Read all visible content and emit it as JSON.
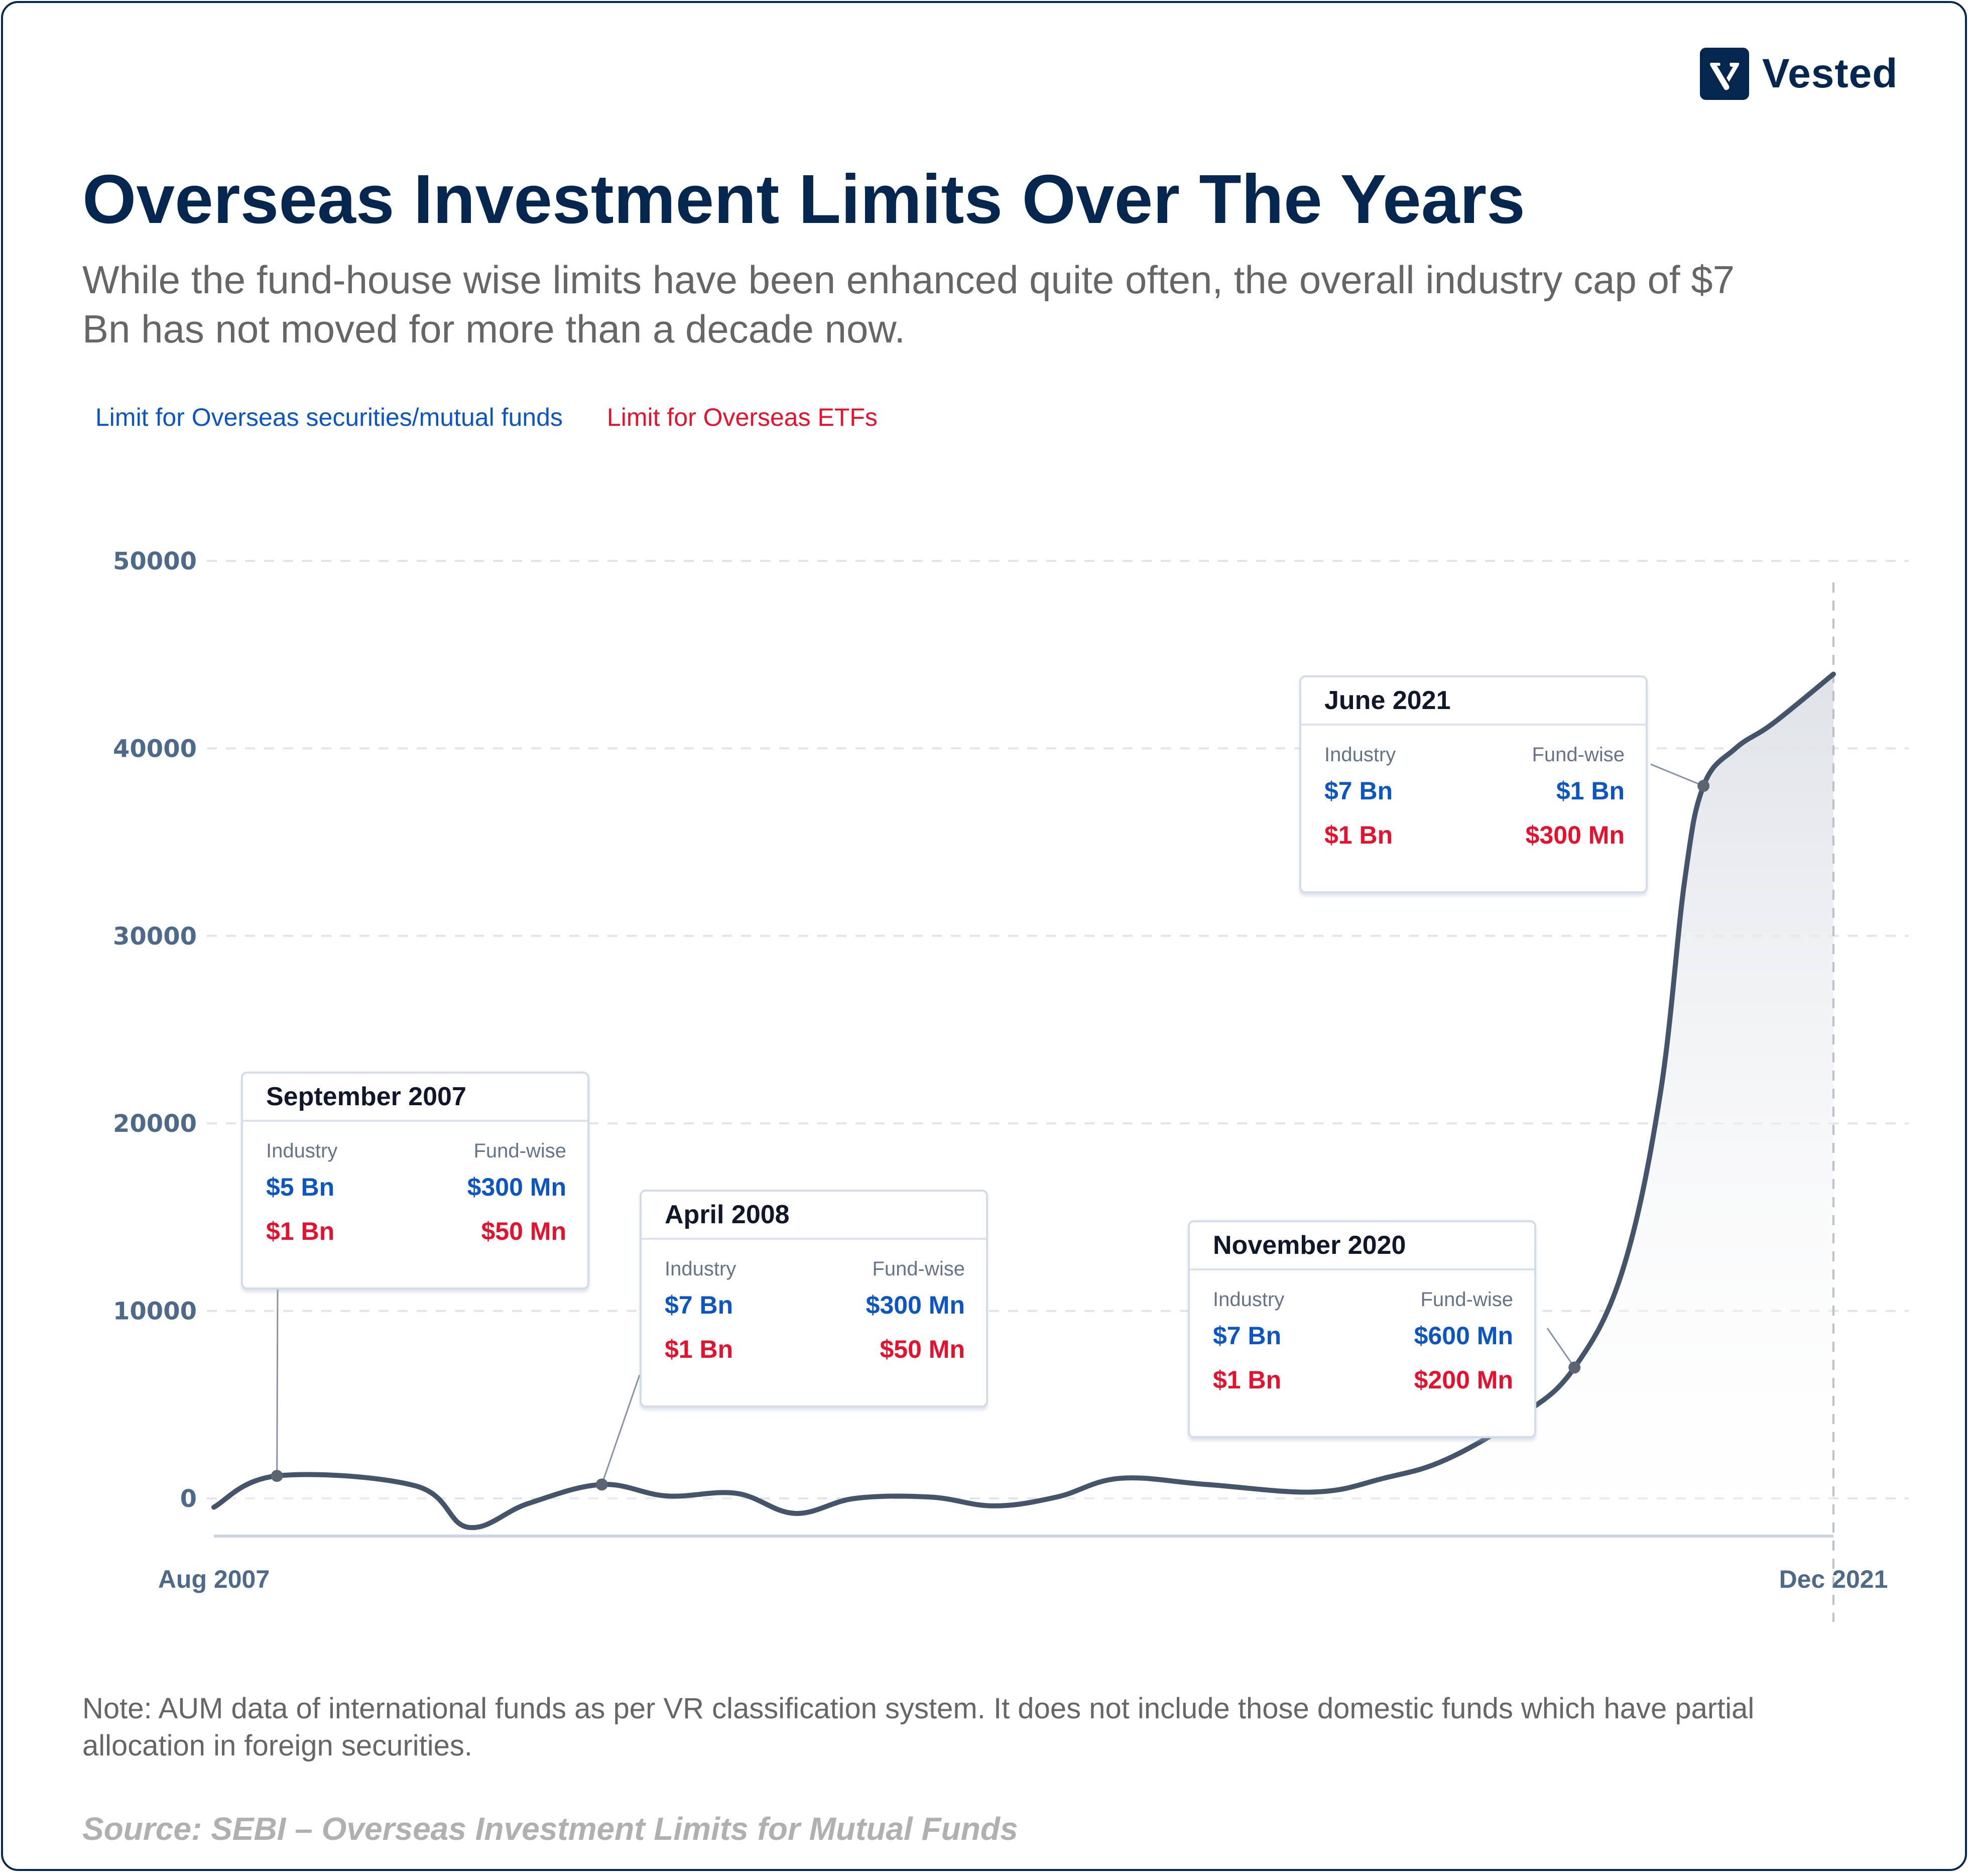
{
  "brand": {
    "name": "Vested",
    "logo_icon": "vested-v-logo",
    "color": "#04264f"
  },
  "header": {
    "title": "Overseas Investment Limits Over The Years",
    "subtitle": "While the fund-house wise limits have been enhanced quite often, the overall industry cap of $7 Bn has not moved for more than a decade now."
  },
  "legend": [
    {
      "label": "Limit for Overseas securities/mutual funds",
      "color": "#0b55c4"
    },
    {
      "label": "Limit for Overseas ETFs",
      "color": "#e8112d"
    }
  ],
  "chart_data": {
    "type": "area",
    "title": "Overseas Investment Limits Over The Years",
    "xlabel": "",
    "ylabel": "",
    "x_unit": "months since Aug 2007",
    "xlim": [
      0,
      172
    ],
    "ylim": [
      0,
      50000
    ],
    "yticks": [
      0,
      10000,
      20000,
      30000,
      40000,
      50000
    ],
    "ytick_labels": [
      "0",
      "10000",
      "20000",
      "30000",
      "40000",
      "50000"
    ],
    "xtick_labels": [
      "Aug 2007",
      "Dec 2021"
    ],
    "grid": true,
    "line_color": "#44546b",
    "fill_color": "#e3e6ea",
    "series": [
      {
        "name": "AUM of international funds",
        "x": [
          0,
          6.7,
          21.4,
          27.0,
          33.4,
          41.2,
          48.1,
          55.5,
          61.7,
          68.1,
          76.1,
          82.8,
          89.5,
          96.2,
          105.5,
          116.9,
          124.2,
          130.9,
          138.9,
          144.5,
          149.6,
          153.6,
          156.2,
          158.2,
          161.6,
          165.6,
          172
        ],
        "y": [
          -470,
          1200,
          670,
          -1540,
          -270,
          740,
          130,
          270,
          -800,
          0,
          70,
          -400,
          70,
          1070,
          740,
          340,
          1070,
          2080,
          4430,
          6980,
          12150,
          21540,
          32950,
          38000,
          40000,
          41340,
          43960
        ]
      }
    ],
    "annotations": [
      {
        "date": "September 2007",
        "x": 6.7,
        "y": 1200,
        "col_labels": [
          "Industry",
          "Fund-wise"
        ],
        "securities": [
          "$5 Bn",
          "$300 Mn"
        ],
        "etfs": [
          "$1 Bn",
          "$50 Mn"
        ]
      },
      {
        "date": "April 2008",
        "x": 41.2,
        "y": 740,
        "col_labels": [
          "Industry",
          "Fund-wise"
        ],
        "securities": [
          "$7 Bn",
          "$300 Mn"
        ],
        "etfs": [
          "$1 Bn",
          "$50 Mn"
        ]
      },
      {
        "date": "November 2020",
        "x": 144.5,
        "y": 6980,
        "col_labels": [
          "Industry",
          "Fund-wise"
        ],
        "securities": [
          "$7 Bn",
          "$600 Mn"
        ],
        "etfs": [
          "$1 Bn",
          "$200 Mn"
        ]
      },
      {
        "date": "June 2021",
        "x": 158.2,
        "y": 38000,
        "col_labels": [
          "Industry",
          "Fund-wise"
        ],
        "securities": [
          "$7 Bn",
          "$1 Bn"
        ],
        "etfs": [
          "$1 Bn",
          "$300 Mn"
        ]
      }
    ]
  },
  "footer": {
    "note": "Note: AUM data of international funds as per VR classification system. It does not include those domestic funds which have partial allocation in foreign securities.",
    "source": "Source: SEBI – Overseas Investment Limits for Mutual Funds"
  }
}
